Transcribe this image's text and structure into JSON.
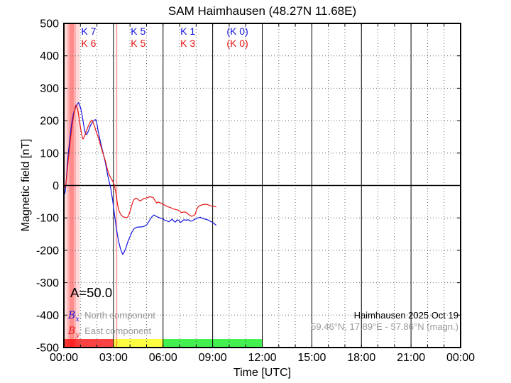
{
  "title": "SAM Haimhausen (48.27N 11.68E)",
  "xlabel": "Time [UTC]",
  "ylabel": "Magnetic field [nT]",
  "a_index": "A=50.0",
  "legend": {
    "items": [
      {
        "symbol": "B",
        "sub": "x",
        "label": ": North component"
      },
      {
        "symbol": "B",
        "sub": "y",
        "label": ": East component"
      }
    ]
  },
  "station_line1": "Haimhausen 2025 Oct 19",
  "station_line2": "59.46°N, 17.89°E - 57.86°N (magn.)",
  "colors": {
    "blue": "#1414e0",
    "red": "#e81414",
    "event_band": "#ff0000",
    "bar_red": "#f94343",
    "bar_yellow": "#fdfd42",
    "bar_green": "#44ef50",
    "grid": "#666666",
    "frame": "#000000",
    "muted_text": "#9a9a9a"
  },
  "chart_data": {
    "type": "line",
    "title": "SAM Haimhausen (48.27N 11.68E)",
    "xlabel": "Time [UTC]",
    "ylabel": "Magnetic field [nT]",
    "xlim_hours": [
      0,
      24
    ],
    "ylim": [
      -500,
      500
    ],
    "grid": "hourly dotted vertical, 100 nT dotted horizontal, solid lines every 3 h and at 0 nT",
    "x_ticks": [
      {
        "hour": 0,
        "label": "00:00"
      },
      {
        "hour": 3,
        "label": "03:00"
      },
      {
        "hour": 6,
        "label": "06:00"
      },
      {
        "hour": 9,
        "label": "09:00"
      },
      {
        "hour": 12,
        "label": "12:00"
      },
      {
        "hour": 15,
        "label": "15:00"
      },
      {
        "hour": 18,
        "label": "18:00"
      },
      {
        "hour": 21,
        "label": "21:00"
      },
      {
        "hour": 24,
        "label": "00:00"
      }
    ],
    "y_ticks": [
      {
        "value": 500,
        "label": "500"
      },
      {
        "value": 400,
        "label": "400"
      },
      {
        "value": 300,
        "label": "300"
      },
      {
        "value": 200,
        "label": "200"
      },
      {
        "value": 100,
        "label": "100"
      },
      {
        "value": 0,
        "label": "0"
      },
      {
        "value": -100,
        "label": "-100"
      },
      {
        "value": -200,
        "label": "-200"
      },
      {
        "value": -300,
        "label": "-300"
      },
      {
        "value": -400,
        "label": "-400"
      },
      {
        "value": -500,
        "label": "-500"
      }
    ],
    "k_annotations": [
      {
        "center_hour": 1.5,
        "blue": "K 7",
        "red": "K 6"
      },
      {
        "center_hour": 4.5,
        "blue": "K 5",
        "red": "K 5"
      },
      {
        "center_hour": 7.5,
        "blue": "K 1",
        "red": "K 3"
      },
      {
        "center_hour": 10.5,
        "blue": "(K 0)",
        "red": "(K 0)"
      }
    ],
    "a_index_value": 50.0,
    "activity_bars": [
      {
        "start_hour": 0,
        "end_hour": 3,
        "color_key": "bar_red"
      },
      {
        "start_hour": 3,
        "end_hour": 6,
        "color_key": "bar_yellow"
      },
      {
        "start_hour": 6,
        "end_hour": 12,
        "color_key": "bar_green"
      }
    ],
    "event_bands": [
      {
        "start_hour": 0.04,
        "end_hour": 0.95,
        "opacity": 0.15
      },
      {
        "start_hour": 0.21,
        "end_hour": 0.73,
        "opacity": 0.18
      },
      {
        "start_hour": 0.34,
        "end_hour": 0.6,
        "opacity": 0.22
      },
      {
        "start_hour": 3.15,
        "end_hour": 3.23,
        "opacity": 0.35
      }
    ],
    "series": [
      {
        "name": "Bx North component",
        "color_key": "blue",
        "points": [
          [
            0.0,
            -18
          ],
          [
            0.05,
            -26
          ],
          [
            0.1,
            -12
          ],
          [
            0.15,
            20
          ],
          [
            0.21,
            69
          ],
          [
            0.28,
            105
          ],
          [
            0.35,
            140
          ],
          [
            0.43,
            175
          ],
          [
            0.5,
            200
          ],
          [
            0.58,
            222
          ],
          [
            0.65,
            233
          ],
          [
            0.72,
            242
          ],
          [
            0.8,
            250
          ],
          [
            0.89,
            256
          ],
          [
            0.95,
            248
          ],
          [
            1.02,
            238
          ],
          [
            1.1,
            218
          ],
          [
            1.18,
            192
          ],
          [
            1.26,
            170
          ],
          [
            1.33,
            158
          ],
          [
            1.4,
            158
          ],
          [
            1.5,
            170
          ],
          [
            1.62,
            186
          ],
          [
            1.75,
            197
          ],
          [
            1.85,
            202
          ],
          [
            1.94,
            203
          ],
          [
            2.0,
            190
          ],
          [
            2.08,
            166
          ],
          [
            2.18,
            142
          ],
          [
            2.3,
            115
          ],
          [
            2.42,
            90
          ],
          [
            2.52,
            68
          ],
          [
            2.62,
            40
          ],
          [
            2.72,
            15
          ],
          [
            2.82,
            -5
          ],
          [
            2.95,
            -45
          ],
          [
            3.05,
            -85
          ],
          [
            3.18,
            -135
          ],
          [
            3.3,
            -170
          ],
          [
            3.42,
            -195
          ],
          [
            3.56,
            -213
          ],
          [
            3.65,
            -205
          ],
          [
            3.75,
            -193
          ],
          [
            3.88,
            -172
          ],
          [
            4.0,
            -158
          ],
          [
            4.12,
            -143
          ],
          [
            4.25,
            -133
          ],
          [
            4.4,
            -129
          ],
          [
            4.55,
            -128
          ],
          [
            4.7,
            -128
          ],
          [
            4.85,
            -126
          ],
          [
            5.0,
            -122
          ],
          [
            5.15,
            -110
          ],
          [
            5.3,
            -98
          ],
          [
            5.45,
            -91
          ],
          [
            5.55,
            -94
          ],
          [
            5.7,
            -98
          ],
          [
            5.85,
            -101
          ],
          [
            6.0,
            -104
          ],
          [
            6.1,
            -107
          ],
          [
            6.22,
            -109
          ],
          [
            6.35,
            -112
          ],
          [
            6.45,
            -108
          ],
          [
            6.55,
            -104
          ],
          [
            6.65,
            -110
          ],
          [
            6.75,
            -113
          ],
          [
            6.85,
            -106
          ],
          [
            6.95,
            -108
          ],
          [
            7.05,
            -114
          ],
          [
            7.15,
            -110
          ],
          [
            7.25,
            -106
          ],
          [
            7.4,
            -107
          ],
          [
            7.55,
            -106
          ],
          [
            7.65,
            -110
          ],
          [
            7.8,
            -108
          ],
          [
            7.95,
            -103
          ],
          [
            8.1,
            -100
          ],
          [
            8.25,
            -98
          ],
          [
            8.4,
            -102
          ],
          [
            8.55,
            -104
          ],
          [
            8.7,
            -106
          ],
          [
            8.85,
            -110
          ],
          [
            9.0,
            -114
          ],
          [
            9.1,
            -118
          ],
          [
            9.2,
            -122
          ]
        ]
      },
      {
        "name": "By East component",
        "color_key": "red",
        "points": [
          [
            0.0,
            -4
          ],
          [
            0.08,
            -6
          ],
          [
            0.15,
            15
          ],
          [
            0.21,
            51
          ],
          [
            0.3,
            95
          ],
          [
            0.38,
            135
          ],
          [
            0.45,
            165
          ],
          [
            0.52,
            192
          ],
          [
            0.6,
            218
          ],
          [
            0.66,
            236
          ],
          [
            0.72,
            248
          ],
          [
            0.78,
            243
          ],
          [
            0.85,
            230
          ],
          [
            0.92,
            208
          ],
          [
            1.0,
            180
          ],
          [
            1.08,
            155
          ],
          [
            1.15,
            143
          ],
          [
            1.22,
            148
          ],
          [
            1.32,
            162
          ],
          [
            1.45,
            180
          ],
          [
            1.58,
            194
          ],
          [
            1.69,
            202
          ],
          [
            1.78,
            192
          ],
          [
            1.86,
            182
          ],
          [
            1.97,
            163
          ],
          [
            2.08,
            149
          ],
          [
            2.2,
            127
          ],
          [
            2.29,
            113
          ],
          [
            2.4,
            93
          ],
          [
            2.51,
            76
          ],
          [
            2.62,
            52
          ],
          [
            2.72,
            35
          ],
          [
            2.85,
            22
          ],
          [
            2.95,
            14
          ],
          [
            3.05,
            2
          ],
          [
            3.15,
            -25
          ],
          [
            3.25,
            -60
          ],
          [
            3.35,
            -80
          ],
          [
            3.45,
            -90
          ],
          [
            3.56,
            -96
          ],
          [
            3.68,
            -98
          ],
          [
            3.8,
            -100
          ],
          [
            3.9,
            -95
          ],
          [
            4.0,
            -80
          ],
          [
            4.1,
            -62
          ],
          [
            4.22,
            -45
          ],
          [
            4.35,
            -39
          ],
          [
            4.48,
            -42
          ],
          [
            4.6,
            -48
          ],
          [
            4.7,
            -45
          ],
          [
            4.82,
            -41
          ],
          [
            4.95,
            -39
          ],
          [
            5.08,
            -37
          ],
          [
            5.2,
            -35
          ],
          [
            5.32,
            -36
          ],
          [
            5.42,
            -38
          ],
          [
            5.52,
            -48
          ],
          [
            5.62,
            -54
          ],
          [
            5.72,
            -51
          ],
          [
            5.85,
            -54
          ],
          [
            6.0,
            -58
          ],
          [
            6.15,
            -62
          ],
          [
            6.3,
            -66
          ],
          [
            6.45,
            -68
          ],
          [
            6.6,
            -72
          ],
          [
            6.75,
            -74
          ],
          [
            6.9,
            -76
          ],
          [
            7.0,
            -78
          ],
          [
            7.1,
            -84
          ],
          [
            7.22,
            -82
          ],
          [
            7.35,
            -82
          ],
          [
            7.48,
            -86
          ],
          [
            7.6,
            -92
          ],
          [
            7.72,
            -95
          ],
          [
            7.85,
            -93
          ],
          [
            7.95,
            -88
          ],
          [
            8.05,
            -72
          ],
          [
            8.15,
            -64
          ],
          [
            8.28,
            -61
          ],
          [
            8.42,
            -59
          ],
          [
            8.55,
            -58
          ],
          [
            8.7,
            -59
          ],
          [
            8.82,
            -62
          ],
          [
            8.95,
            -63
          ],
          [
            9.05,
            -64
          ],
          [
            9.2,
            -66
          ]
        ]
      }
    ]
  }
}
